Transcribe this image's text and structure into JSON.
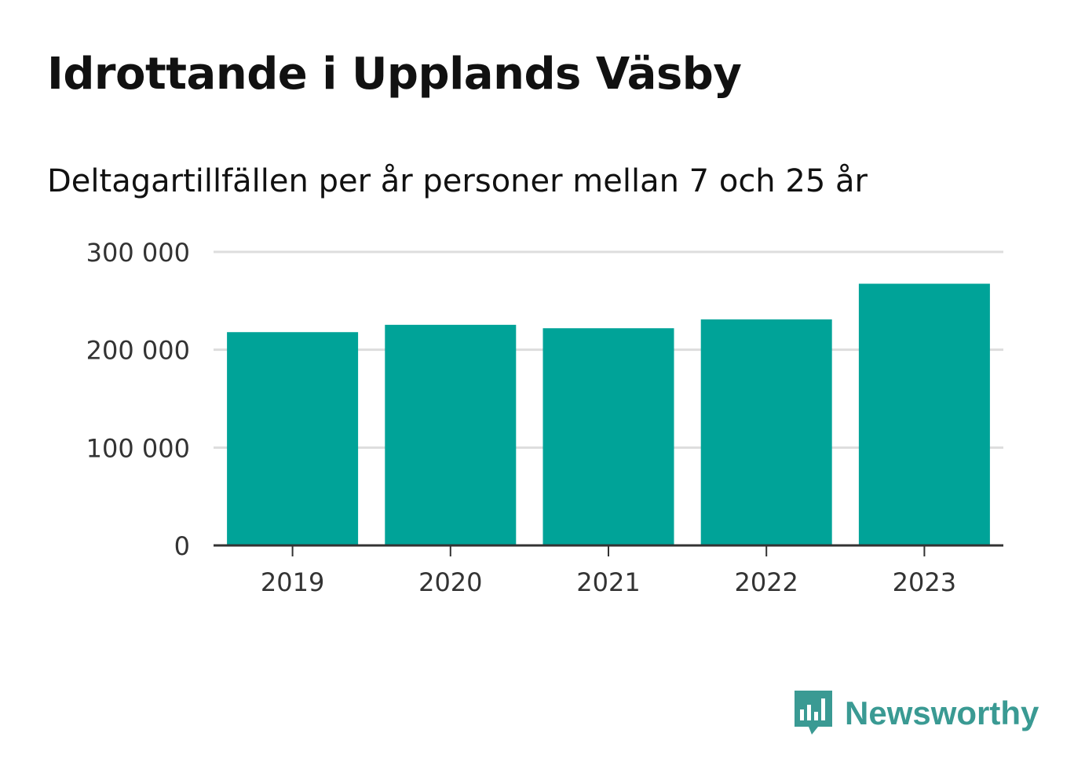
{
  "title": "Idrottande i Upplands Väsby",
  "subtitle": "Deltagartillfällen per år personer mellan 7 och 25 år",
  "logo": {
    "text": "Newsworthy",
    "icon": "bar-chart-speech-bubble-icon",
    "color": "#3a9a93"
  },
  "colors": {
    "bar": "#00a398",
    "grid": "#dddddd",
    "axis": "#333333"
  },
  "chart_data": {
    "type": "bar",
    "categories": [
      "2019",
      "2020",
      "2021",
      "2022",
      "2023"
    ],
    "values": [
      218000,
      225500,
      222000,
      231000,
      267500
    ],
    "ylim": [
      0,
      300000
    ],
    "yticks": [
      0,
      100000,
      200000,
      300000
    ],
    "ytick_labels": [
      "0",
      "100 000",
      "200 000",
      "300 000"
    ],
    "grid": true,
    "legend": "none"
  }
}
